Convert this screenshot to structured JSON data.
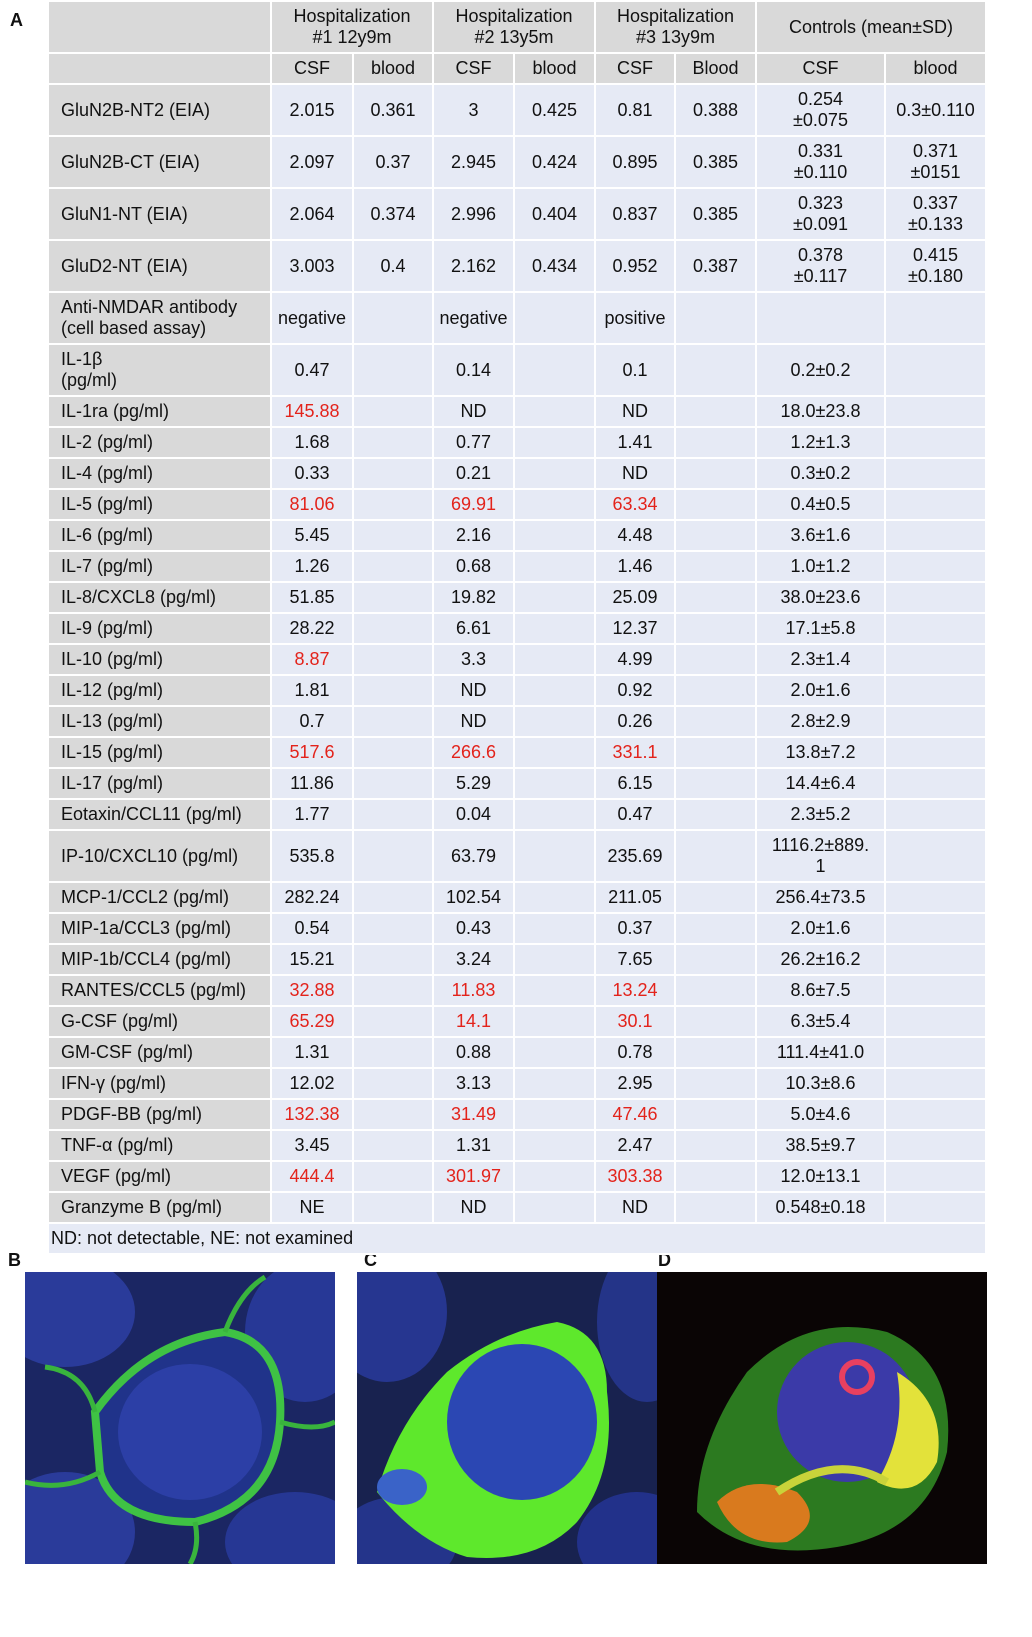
{
  "panels": [
    "A",
    "B",
    "C",
    "D"
  ],
  "table": {
    "groups": [
      "Hospitalization\n#1  12y9m",
      "Hospitalization\n#2  13y5m",
      "Hospitalization\n#3  13y9m",
      "Controls (mean±SD)"
    ],
    "subheaders": [
      "CSF",
      "blood",
      "CSF",
      "blood",
      "CSF",
      "Blood",
      "CSF",
      "blood"
    ],
    "highlight_color": "#e3231b",
    "rows": [
      {
        "label": "GluN2B-NT2 (EIA)",
        "values": [
          "2.015",
          "0.361",
          "3",
          "0.425",
          "0.81",
          "0.388",
          "0.254\n±0.075",
          "0.3±0.110"
        ]
      },
      {
        "label": "GluN2B-CT (EIA)",
        "values": [
          "2.097",
          "0.37",
          "2.945",
          "0.424",
          "0.895",
          "0.385",
          "0.331\n±0.110",
          "0.371\n±0151"
        ]
      },
      {
        "label": "GluN1-NT (EIA)",
        "values": [
          "2.064",
          "0.374",
          "2.996",
          "0.404",
          "0.837",
          "0.385",
          "0.323\n±0.091",
          "0.337\n±0.133"
        ]
      },
      {
        "label": "GluD2-NT (EIA)",
        "values": [
          "3.003",
          "0.4",
          "2.162",
          "0.434",
          "0.952",
          "0.387",
          "0.378\n±0.117",
          "0.415\n±0.180"
        ]
      },
      {
        "label": "Anti-NMDAR antibody\n(cell based assay)",
        "values": [
          "negative",
          null,
          "negative",
          null,
          "positive",
          null,
          null,
          null
        ]
      },
      {
        "label": "IL-1β\n(pg/ml)",
        "values": [
          "0.47",
          null,
          "0.14",
          null,
          "0.1",
          null,
          "0.2±0.2",
          null
        ]
      },
      {
        "label": "IL-1ra (pg/ml)",
        "values": [
          "145.88",
          null,
          "ND",
          null,
          "ND",
          null,
          "18.0±23.8",
          null
        ],
        "red": [
          0
        ]
      },
      {
        "label": "IL-2 (pg/ml)",
        "values": [
          "1.68",
          null,
          "0.77",
          null,
          "1.41",
          null,
          "1.2±1.3",
          null
        ]
      },
      {
        "label": "IL-4 (pg/ml)",
        "values": [
          "0.33",
          null,
          "0.21",
          null,
          "ND",
          null,
          "0.3±0.2",
          null
        ]
      },
      {
        "label": "IL-5 (pg/ml)",
        "values": [
          "81.06",
          null,
          "69.91",
          null,
          "63.34",
          null,
          "0.4±0.5",
          null
        ],
        "red": [
          0,
          2,
          4
        ]
      },
      {
        "label": "IL-6 (pg/ml)",
        "values": [
          "5.45",
          null,
          "2.16",
          null,
          "4.48",
          null,
          "3.6±1.6",
          null
        ]
      },
      {
        "label": "IL-7 (pg/ml)",
        "values": [
          "1.26",
          null,
          "0.68",
          null,
          "1.46",
          null,
          "1.0±1.2",
          null
        ]
      },
      {
        "label": "IL-8/CXCL8 (pg/ml)",
        "values": [
          "51.85",
          null,
          "19.82",
          null,
          "25.09",
          null,
          "38.0±23.6",
          null
        ]
      },
      {
        "label": "IL-9 (pg/ml)",
        "values": [
          "28.22",
          null,
          "6.61",
          null,
          "12.37",
          null,
          "17.1±5.8",
          null
        ]
      },
      {
        "label": "IL-10 (pg/ml)",
        "values": [
          "8.87",
          null,
          "3.3",
          null,
          "4.99",
          null,
          "2.3±1.4",
          null
        ],
        "red": [
          0
        ]
      },
      {
        "label": "IL-12 (pg/ml)",
        "values": [
          "1.81",
          null,
          "ND",
          null,
          "0.92",
          null,
          "2.0±1.6",
          null
        ]
      },
      {
        "label": "IL-13 (pg/ml)",
        "values": [
          "0.7",
          null,
          "ND",
          null,
          "0.26",
          null,
          "2.8±2.9",
          null
        ]
      },
      {
        "label": "IL-15 (pg/ml)",
        "values": [
          "517.6",
          null,
          "266.6",
          null,
          "331.1",
          null,
          "13.8±7.2",
          null
        ],
        "red": [
          0,
          2,
          4
        ]
      },
      {
        "label": "IL-17 (pg/ml)",
        "values": [
          "11.86",
          null,
          "5.29",
          null,
          "6.15",
          null,
          "14.4±6.4",
          null
        ]
      },
      {
        "label": "Eotaxin/CCL11 (pg/ml)",
        "values": [
          "1.77",
          null,
          "0.04",
          null,
          "0.47",
          null,
          "2.3±5.2",
          null
        ]
      },
      {
        "label": "IP-10/CXCL10 (pg/ml)",
        "values": [
          "535.8",
          null,
          "63.79",
          null,
          "235.69",
          null,
          "1116.2±889.\n1",
          null
        ]
      },
      {
        "label": "MCP-1/CCL2 (pg/ml)",
        "values": [
          "282.24",
          null,
          "102.54",
          null,
          "211.05",
          null,
          "256.4±73.5",
          null
        ]
      },
      {
        "label": "MIP-1a/CCL3 (pg/ml)",
        "values": [
          "0.54",
          null,
          "0.43",
          null,
          "0.37",
          null,
          "2.0±1.6",
          null
        ]
      },
      {
        "label": "MIP-1b/CCL4 (pg/ml)",
        "values": [
          "15.21",
          null,
          "3.24",
          null,
          "7.65",
          null,
          "26.2±16.2",
          null
        ]
      },
      {
        "label": "RANTES/CCL5 (pg/ml)",
        "values": [
          "32.88",
          null,
          "11.83",
          null,
          "13.24",
          null,
          "8.6±7.5",
          null
        ],
        "red": [
          0,
          2,
          4
        ]
      },
      {
        "label": "G-CSF (pg/ml)",
        "values": [
          "65.29",
          null,
          "14.1",
          null,
          "30.1",
          null,
          "6.3±5.4",
          null
        ],
        "red": [
          0,
          2,
          4
        ]
      },
      {
        "label": "GM-CSF (pg/ml)",
        "values": [
          "1.31",
          null,
          "0.88",
          null,
          "0.78",
          null,
          "111.4±41.0",
          null
        ]
      },
      {
        "label": "IFN-γ (pg/ml)",
        "values": [
          "12.02",
          null,
          "3.13",
          null,
          "2.95",
          null,
          "10.3±8.6",
          null
        ]
      },
      {
        "label": "PDGF-BB (pg/ml)",
        "values": [
          "132.38",
          null,
          "31.49",
          null,
          "47.46",
          null,
          "5.0±4.6",
          null
        ],
        "red": [
          0,
          2,
          4
        ]
      },
      {
        "label": "TNF-α (pg/ml)",
        "values": [
          "3.45",
          null,
          "1.31",
          null,
          "2.47",
          null,
          "38.5±9.7",
          null
        ]
      },
      {
        "label": "VEGF (pg/ml)",
        "values": [
          "444.4",
          null,
          "301.97",
          null,
          "303.38",
          null,
          "12.0±13.1",
          null
        ],
        "red": [
          0,
          2,
          4
        ]
      },
      {
        "label": "Granzyme B (pg/ml)",
        "values": [
          "NE",
          null,
          "ND",
          null,
          "ND",
          null,
          "0.548±0.18",
          null
        ]
      }
    ],
    "footnote": "ND: not detectable, NE: not examined"
  }
}
